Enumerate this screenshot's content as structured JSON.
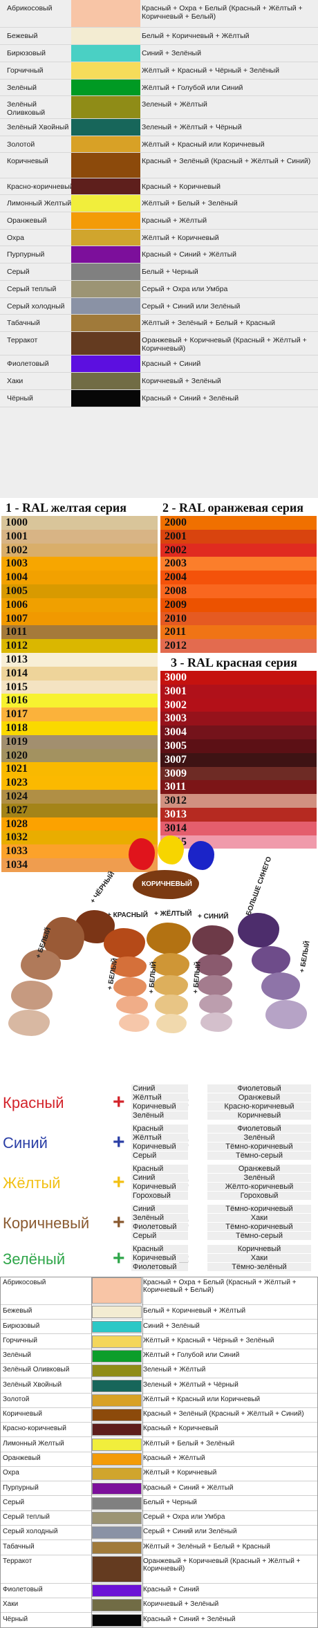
{
  "table1": {
    "rows": [
      {
        "name": "Абрикосовый",
        "color": "#f8c5a6",
        "mix": "Красный + Охра + Белый (Красный + Жёлтый + Коричневый + Белый)",
        "h": 40
      },
      {
        "name": "Бежевый",
        "color": "#f3ecd2",
        "mix": "Белый + Коричневый + Жёлтый",
        "h": 24
      },
      {
        "name": "Бирюзовый",
        "color": "#4ad0c4",
        "mix": "Синий + Зелёный",
        "h": 24
      },
      {
        "name": "Горчичный",
        "color": "#f6dc5a",
        "mix": "Жёлтый + Красный + Чёрный + Зелёный",
        "h": 24
      },
      {
        "name": "Зелёный",
        "color": "#009a23",
        "mix": "Жёлтый + Голубой или Синий",
        "h": 24
      },
      {
        "name": "Зелёный Оливковый",
        "color": "#8f8c17",
        "mix": "Зеленый + Жёлтый",
        "h": 32
      },
      {
        "name": "Зелёный Хвойный",
        "color": "#17665a",
        "mix": "Зеленый + Жёлтый  + Чёрный",
        "h": 24
      },
      {
        "name": "Золотой",
        "color": "#d8a126",
        "mix": "Жёлтый + Красный или Коричневый",
        "h": 24
      },
      {
        "name": "Коричневый",
        "color": "#8c4a0b",
        "mix": "Красный + Зелёный (Красный + Жёлтый + Синий)",
        "h": 36
      },
      {
        "name": "Красно-коричневый",
        "color": "#5e1f1c",
        "mix": "Красный + Коричневый",
        "h": 24
      },
      {
        "name": "Лимонный Желтый",
        "color": "#f1ee3c",
        "mix": "Жёлтый + Белый + Зелёный",
        "h": 24
      },
      {
        "name": "Оранжевый",
        "color": "#f39b07",
        "mix": "Красный + Жёлтый",
        "h": 24
      },
      {
        "name": "Охра",
        "color": "#d0a52d",
        "mix": "Жёлтый + Коричневый",
        "h": 24
      },
      {
        "name": "Пурпурный",
        "color": "#7c0f9b",
        "mix": "Красный + Синий + Жёлтый",
        "h": 24
      },
      {
        "name": "Серый",
        "color": "#808080",
        "mix": "Белый + Черный",
        "h": 24
      },
      {
        "name": "Серый теплый",
        "color": "#9c9474",
        "mix": "Серый + Охра или Умбра",
        "h": 24
      },
      {
        "name": "Серый холодный",
        "color": "#8a92a5",
        "mix": "Серый + Синий или Зелёный",
        "h": 24
      },
      {
        "name": "Табачный",
        "color": "#a07a3a",
        "mix": "Жёлтый + Зелёный + Белый + Красный",
        "h": 24
      },
      {
        "name": "Терракот",
        "color": "#643b20",
        "mix": "Оранжевый + Коричневый (Красный + Жёлтый + Коричневый)",
        "h": 34
      },
      {
        "name": "Фиолетовый",
        "color": "#5c0fe0",
        "mix": "Красный + Синий",
        "h": 24
      },
      {
        "name": "Хаки",
        "color": "#716c45",
        "mix": "Коричневый + Зелёный",
        "h": 24
      },
      {
        "name": "Чёрный",
        "color": "#070707",
        "mix": "Красный + Синий + Зелёный",
        "h": 24
      }
    ]
  },
  "ral": {
    "yellow_title": "1 - RAL желтая серия",
    "orange_title": "2 - RAL оранжевая серия",
    "red_title": "3 - RAL красная серия",
    "yellow": [
      {
        "code": "1000",
        "color": "#d9c59a"
      },
      {
        "code": "1001",
        "color": "#d8b485"
      },
      {
        "code": "1002",
        "color": "#d9ae6a"
      },
      {
        "code": "1003",
        "color": "#f7a600"
      },
      {
        "code": "1004",
        "color": "#f2a100"
      },
      {
        "code": "1005",
        "color": "#d89a00"
      },
      {
        "code": "1006",
        "color": "#f0a000"
      },
      {
        "code": "1007",
        "color": "#f19900"
      },
      {
        "code": "1011",
        "color": "#a57a3a"
      },
      {
        "code": "1012",
        "color": "#dab700"
      },
      {
        "code": "1013",
        "color": "#f8efd6"
      },
      {
        "code": "1014",
        "color": "#eed49a"
      },
      {
        "code": "1015",
        "color": "#f4e3c2"
      },
      {
        "code": "1016",
        "color": "#f7f230"
      },
      {
        "code": "1017",
        "color": "#fbb23b"
      },
      {
        "code": "1018",
        "color": "#fad900"
      },
      {
        "code": "1019",
        "color": "#a28f6f"
      },
      {
        "code": "1020",
        "color": "#a39260"
      },
      {
        "code": "1021",
        "color": "#f9b900"
      },
      {
        "code": "1023",
        "color": "#fbb900"
      },
      {
        "code": "1024",
        "color": "#b08f45"
      },
      {
        "code": "1027",
        "color": "#a48418"
      },
      {
        "code": "1028",
        "color": "#fca200"
      },
      {
        "code": "1032",
        "color": "#e9ad00"
      },
      {
        "code": "1033",
        "color": "#fca22a"
      },
      {
        "code": "1034",
        "color": "#ef9d4f"
      }
    ],
    "orange": [
      {
        "code": "2000",
        "color": "#f07000"
      },
      {
        "code": "2001",
        "color": "#d9440f"
      },
      {
        "code": "2002",
        "color": "#e02b20"
      },
      {
        "code": "2003",
        "color": "#fb7e2b"
      },
      {
        "code": "2004",
        "color": "#f4520a"
      },
      {
        "code": "2008",
        "color": "#f9671f"
      },
      {
        "code": "2009",
        "color": "#ec5200"
      },
      {
        "code": "2010",
        "color": "#e55a22"
      },
      {
        "code": "2011",
        "color": "#f07415"
      },
      {
        "code": "2012",
        "color": "#e36b4f"
      }
    ],
    "red": [
      {
        "code": "3000",
        "color": "#c5120f"
      },
      {
        "code": "3001",
        "color": "#b0111a"
      },
      {
        "code": "3002",
        "color": "#b31018"
      },
      {
        "code": "3003",
        "color": "#96121b"
      },
      {
        "code": "3004",
        "color": "#74131b"
      },
      {
        "code": "3005",
        "color": "#5c1015"
      },
      {
        "code": "3007",
        "color": "#3e1314"
      },
      {
        "code": "3009",
        "color": "#6e2b25"
      },
      {
        "code": "3011",
        "color": "#7c1517"
      },
      {
        "code": "3012",
        "color": "#d19080"
      },
      {
        "code": "3013",
        "color": "#b62a21"
      },
      {
        "code": "3014",
        "color": "#e45e6d"
      },
      {
        "code": "3015",
        "color": "#f09aab"
      }
    ]
  },
  "wheel": {
    "center_label": "КОРИЧНЕВЫЙ",
    "labels": {
      "black": "+ ЧЁРНЫЙ",
      "red": "+ КРАСНЫЙ",
      "yellow": "+ ЖЁЛТЫЙ",
      "blue": "+ СИНИЙ",
      "more_blue": "+ БОЛЬШЕ СИНЕГО",
      "white1": "+ БЕЛЫЙ",
      "white2": "+ БЕЛЫЙ",
      "white3": "+ БЕЛЫЙ",
      "white4": "+ БЕЛЫЙ",
      "white5": "+ БЕЛЫЙ"
    },
    "colors": {
      "red": "#e0141c",
      "yellow": "#f7d500",
      "blue": "#1b24c8",
      "brown": "#7b3a12"
    }
  },
  "mix_table": {
    "rows": [
      {
        "name": "Красный",
        "color": "#d3242b",
        "sign": "+",
        "sign_color": "#d3242b",
        "items": [
          "Синий",
          "Жёлтый",
          "Коричневый",
          "Зелёный"
        ],
        "results": [
          "Фиолетовый",
          "Оранжевый",
          "Красно-коричневый",
          "Коричневый"
        ]
      },
      {
        "name": "Синий",
        "color": "#2b3fa6",
        "sign": "+",
        "sign_color": "#2b3fa6",
        "items": [
          "Красный",
          "Жёлтый",
          "Коричневый",
          "Серый"
        ],
        "results": [
          "Фиолетовый",
          "Зелёный",
          "Тёмно-коричневый",
          "Тёмно-серый"
        ]
      },
      {
        "name": "Жёлтый",
        "color": "#f2c014",
        "sign": "+",
        "sign_color": "#f2c014",
        "items": [
          "Красный",
          "Синий",
          "Коричневый",
          "Гороховый"
        ],
        "results": [
          "Оранжевый",
          "Зелёный",
          "Жёлто-коричневый",
          "Гороховый"
        ]
      },
      {
        "name": "Коричневый",
        "color": "#8a5a30",
        "sign": "+",
        "sign_color": "#8a5a30",
        "items": [
          "Синий",
          "Зелёный",
          "Фиолетовый",
          "Серый"
        ],
        "results": [
          "Тёмно-коричневый",
          "Хаки",
          "Тёмно-коричневый",
          "Тёмно-серый"
        ]
      },
      {
        "name": "Зелёный",
        "color": "#2fa64a",
        "sign": "+",
        "sign_color": "#2fa64a",
        "items": [
          "Красный",
          "Коричневый",
          "Фиолетовый"
        ],
        "results": [
          "Коричневый",
          "Хаки",
          "Тёмно-зелёный"
        ]
      }
    ],
    "equals": "="
  },
  "table2": {
    "rows": [
      {
        "name": "Абрикосовый",
        "color": "#f8c5a6",
        "mix": "Красный + Охра + Белый (Красный + Жёлтый + Коричневый + Белый)",
        "h": 30
      },
      {
        "name": "Бежевый",
        "color": "#f3ecd2",
        "mix": "Белый + Коричневый + Жёлтый",
        "h": 15
      },
      {
        "name": "Бирюзовый",
        "color": "#2cc8c6",
        "mix": "Синий + Зелёный",
        "h": 15
      },
      {
        "name": "Горчичный",
        "color": "#f4d65a",
        "mix": "Жёлтый + Красный + Чёрный + Зелёный",
        "h": 15
      },
      {
        "name": "Зелёный",
        "color": "#0c9e2a",
        "mix": "Жёлтый + Голубой или Синий",
        "h": 15
      },
      {
        "name": "Зелёный Оливковый",
        "color": "#8f8c17",
        "mix": "Зеленый + Жёлтый",
        "h": 15
      },
      {
        "name": "Зелёный Хвойный",
        "color": "#17665a",
        "mix": "Зеленый + Жёлтый + Чёрный",
        "h": 15
      },
      {
        "name": "Золотой",
        "color": "#d8a126",
        "mix": "Жёлтый + Красный или Коричневый",
        "h": 15
      },
      {
        "name": "Коричневый",
        "color": "#8c4a0b",
        "mix": "Красный + Зелёный (Красный + Жёлтый + Синий)",
        "h": 15
      },
      {
        "name": "Красно-коричневый",
        "color": "#5e1f1c",
        "mix": "Красный + Коричневый",
        "h": 15
      },
      {
        "name": "Лимонный Желтый",
        "color": "#f1ee3c",
        "mix": "Жёлтый + Белый + Зелёный",
        "h": 15
      },
      {
        "name": "Оранжевый",
        "color": "#f39b07",
        "mix": "Красный + Жёлтый",
        "h": 15
      },
      {
        "name": "Охра",
        "color": "#d0a52d",
        "mix": "Жёлтый + Коричневый",
        "h": 15
      },
      {
        "name": "Пурпурный",
        "color": "#7c0f9b",
        "mix": "Красный + Синий + Жёлтый",
        "h": 15
      },
      {
        "name": "Серый",
        "color": "#808080",
        "mix": "Белый + Черный",
        "h": 15
      },
      {
        "name": "Серый теплый",
        "color": "#9c9474",
        "mix": "Серый + Охра или Умбра",
        "h": 15
      },
      {
        "name": "Серый холодный",
        "color": "#8a92a5",
        "mix": "Серый + Синий или Зелёный",
        "h": 15
      },
      {
        "name": "Табачный",
        "color": "#a07a3a",
        "mix": "Жёлтый + Зелёный + Белый + Красный",
        "h": 15
      },
      {
        "name": "Терракот",
        "color": "#643b20",
        "mix": "Оранжевый + Коричневый (Красный + Жёлтый + Коричневый)",
        "h": 30
      },
      {
        "name": "Фиолетовый",
        "color": "#6b12d6",
        "mix": "Красный + Синий",
        "h": 15
      },
      {
        "name": "Хаки",
        "color": "#716c45",
        "mix": "Коричневый + Зелёный",
        "h": 15
      },
      {
        "name": "Чёрный",
        "color": "#070707",
        "mix": "Красный + Синий + Зелёный",
        "h": 15
      }
    ]
  }
}
